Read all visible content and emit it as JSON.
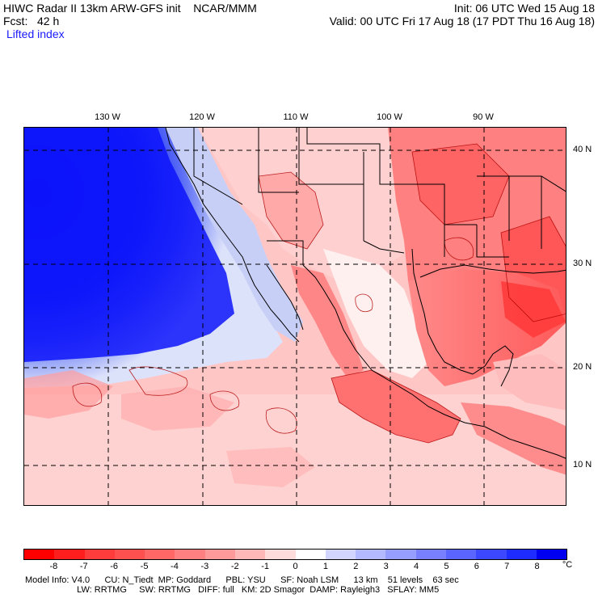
{
  "header": {
    "line1_left": "HIWC Radar II 13km ARW-GFS init    NCAR/MMM",
    "line2_left": "Fcst:   42 h",
    "line3_left": "Lifted index",
    "line1_right": "Init: 06 UTC Wed 15 Aug 18",
    "line2_right": "Valid: 00 UTC Fri 17 Aug 18 (17 PDT Thu 16 Aug 18)"
  },
  "longitudes": [
    "130 W",
    "120 W",
    "110 W",
    "100 W",
    "90 W"
  ],
  "latitudes": [
    "40 N",
    "30 N",
    "20 N",
    "10 N"
  ],
  "colorbar": {
    "ticks": [
      "-8",
      "-7",
      "-6",
      "-5",
      "-4",
      "-3",
      "-2",
      "-1",
      "0",
      "1",
      "2",
      "3",
      "4",
      "5",
      "6",
      "7",
      "8"
    ],
    "unit": "°C",
    "colors": [
      "#ff0000",
      "#ff1e1e",
      "#ff3c3c",
      "#ff5050",
      "#ff6666",
      "#ff8080",
      "#ff9a9a",
      "#ffb8b8",
      "#ffdcdc",
      "#ffffff",
      "#d2d6ff",
      "#b4baff",
      "#969eff",
      "#7880ff",
      "#5a64ff",
      "#3c48ff",
      "#1e2cff",
      "#0000f0"
    ]
  },
  "footer": {
    "line1": "Model Info: V4.0      CU: N_Tiedt  MP: Goddard      PBL: YSU      SF: Noah LSM      13 km    51 levels    63 sec",
    "line2": "                     LW: RRTMG     SW: RRTMG   DIFF: full   KM: 2D Smagor  DAMP: Rayleigh3   SFLAY: MM5"
  }
}
